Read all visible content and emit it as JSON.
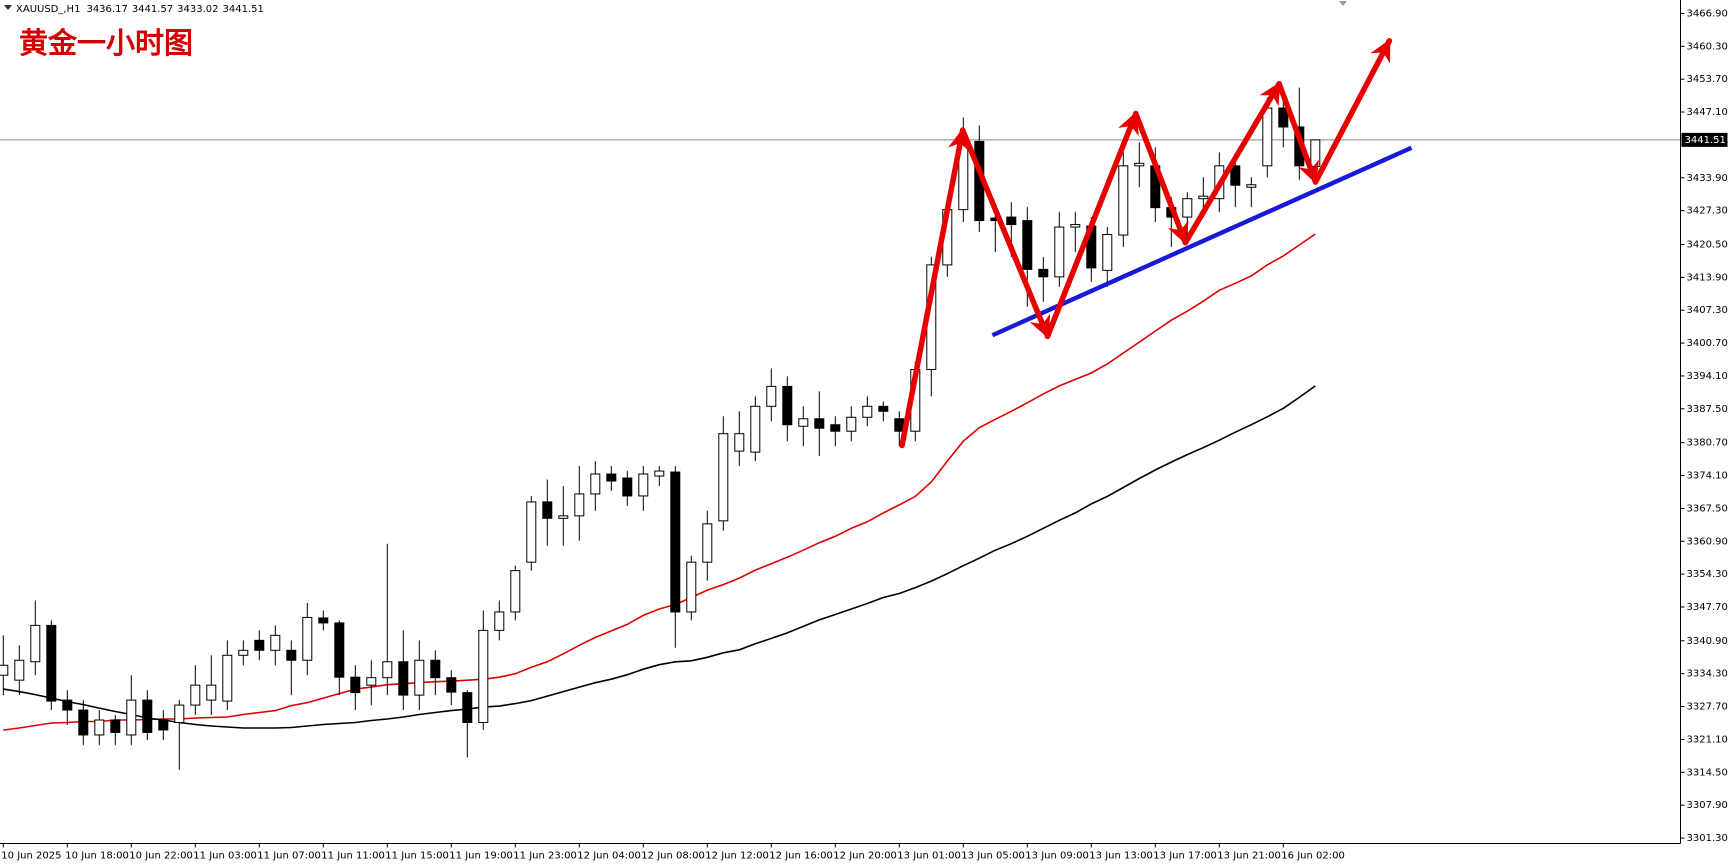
{
  "chart_data": {
    "type": "candlestick",
    "symbol": "XAUUSD_,H1",
    "title": "黄金一小时图",
    "categories": [
      "10 Jun 2025",
      null,
      null,
      null,
      "10 Jun 18:00",
      null,
      null,
      null,
      "10 Jun 22:00",
      null,
      null,
      null,
      "11 Jun 03:00",
      null,
      null,
      null,
      "11 Jun 07:00",
      null,
      null,
      null,
      "11 Jun 11:00",
      null,
      null,
      null,
      "11 Jun 15:00",
      null,
      null,
      null,
      "11 Jun 19:00",
      null,
      null,
      null,
      "11 Jun 23:00",
      null,
      null,
      null,
      "12 Jun 04:00",
      null,
      null,
      null,
      "12 Jun 08:00",
      null,
      null,
      null,
      "12 Jun 12:00",
      null,
      null,
      null,
      "12 Jun 16:00",
      null,
      null,
      null,
      "12 Jun 20:00",
      null,
      null,
      null,
      "13 Jun 01:00",
      null,
      null,
      null,
      "13 Jun 05:00",
      null,
      null,
      null,
      "13 Jun 09:00",
      null,
      null,
      null,
      "13 Jun 13:00",
      null,
      null,
      null,
      "13 Jun 17:00",
      null,
      null,
      null,
      "13 Jun 21:00",
      null,
      null,
      null,
      "16 Jun 02:00",
      null,
      null
    ],
    "open": [
      3334,
      3333,
      3336.7,
      3344,
      3329,
      3327,
      3322,
      3325,
      3322,
      3329,
      3325,
      3324.5,
      3328,
      3329,
      3328.8,
      3338,
      3341,
      3339,
      3339,
      3337,
      3345.5,
      3344.5,
      3333.6,
      3332,
      3333.5,
      3336.7,
      3330,
      3337,
      3333.5,
      3330.5,
      3324.5,
      3343,
      3346.7,
      3356.7,
      3368.8,
      3365.5,
      3366,
      3370.4,
      3374.4,
      3373.6,
      3370,
      3374,
      3374.8,
      3346.7,
      3356.7,
      3365,
      3379,
      3378.8,
      3388,
      3392,
      3384,
      3385.5,
      3384.3,
      3383,
      3385.8,
      3388,
      3385.5,
      3383,
      3395.4,
      3416.4,
      3427.5,
      3441.2,
      3425.8,
      3426,
      3425.3,
      3415.5,
      3414,
      3424,
      3424.2,
      3415.3,
      3422.4,
      3436.3,
      3436.3,
      3427.9,
      3426,
      3429.7,
      3429.7,
      3436.3,
      3432,
      3436.3,
      3447.9,
      3444.1,
      3436.17
    ],
    "high": [
      3342,
      3340,
      3349,
      3345,
      3331,
      3329,
      3327,
      3326,
      3334,
      3331,
      3327,
      3329,
      3336,
      3338,
      3341,
      3341,
      3343,
      3344,
      3341,
      3348.5,
      3347,
      3345,
      3336,
      3337,
      3360.4,
      3343,
      3341,
      3339,
      3335,
      3331,
      3347,
      3349,
      3356,
      3370,
      3373.3,
      3372,
      3376,
      3377,
      3376,
      3375,
      3376,
      3376,
      3376,
      3358,
      3367,
      3386,
      3387,
      3390,
      3395.6,
      3394,
      3388,
      3391,
      3386,
      3388,
      3390,
      3389,
      3387,
      3397,
      3418,
      3430,
      3446,
      3444.4,
      3428,
      3429,
      3428,
      3418,
      3427,
      3427,
      3426,
      3424,
      3441,
      3441,
      3440,
      3430,
      3431,
      3434,
      3439,
      3437,
      3434,
      3450,
      3449.5,
      3452,
      3441.57
    ],
    "low": [
      3330,
      3330,
      3334,
      3327,
      3324,
      3320,
      3320,
      3320,
      3320,
      3321,
      3321,
      3315,
      3326,
      3326,
      3327,
      3336,
      3337,
      3336,
      3330,
      3334,
      3343,
      3330,
      3327,
      3328,
      3330,
      3327,
      3327,
      3330,
      3328,
      3317.5,
      3323,
      3341,
      3345,
      3355,
      3360,
      3360,
      3361,
      3367,
      3371,
      3368,
      3367,
      3372,
      3339.5,
      3345,
      3353,
      3363,
      3376,
      3377,
      3385,
      3381,
      3380,
      3378,
      3380,
      3381,
      3384,
      3385,
      3380,
      3381,
      3390,
      3414,
      3425,
      3423,
      3419,
      3418,
      3408,
      3409,
      3412,
      3419,
      3413,
      3412,
      3420,
      3432,
      3425,
      3420,
      3422,
      3426,
      3427,
      3428,
      3428,
      3434,
      3440,
      3433.5,
      3433.02
    ],
    "close": [
      3336,
      3337,
      3344,
      3328.8,
      3327,
      3322,
      3325,
      3322.5,
      3329,
      3322.5,
      3323,
      3328,
      3332,
      3332,
      3338,
      3339,
      3339,
      3342,
      3337,
      3345.6,
      3344.5,
      3333.6,
      3330.5,
      3333.5,
      3336.7,
      3330,
      3337,
      3333.5,
      3330.6,
      3324.5,
      3343,
      3346.7,
      3355,
      3368.8,
      3365.5,
      3366,
      3370.4,
      3374.4,
      3373,
      3370,
      3374.4,
      3375,
      3346.7,
      3356.7,
      3364.4,
      3382.5,
      3382.5,
      3388,
      3392,
      3384.3,
      3385.5,
      3383.6,
      3383,
      3385.8,
      3388,
      3387,
      3383,
      3395.4,
      3416.4,
      3427.5,
      3440.8,
      3425.3,
      3425.3,
      3424.5,
      3415.5,
      3414,
      3424,
      3424.5,
      3415.8,
      3422.5,
      3436.3,
      3436.8,
      3427.9,
      3426,
      3429.7,
      3430.2,
      3436.3,
      3432.4,
      3432.5,
      3447.9,
      3444.1,
      3436.3,
      3441.51
    ],
    "bull_color": "#ffffff",
    "bear_color": "#000000",
    "overlays": [
      {
        "color": "#e00000",
        "values": [
          3323.0,
          3323.4,
          3323.9,
          3324.4,
          3324.5,
          3324.7,
          3324.7,
          3325.0,
          3325.0,
          3325.1,
          3325.2,
          3325.2,
          3325.4,
          3325.5,
          3325.6,
          3326.1,
          3326.5,
          3326.9,
          3327.9,
          3328.5,
          3329.4,
          3330.3,
          3331.2,
          3331.6,
          3332.1,
          3332.3,
          3332.5,
          3332.7,
          3332.8,
          3333.0,
          3333.2,
          3333.6,
          3334.3,
          3335.6,
          3336.7,
          3338.3,
          3340.0,
          3341.6,
          3342.9,
          3344.2,
          3346.0,
          3347.3,
          3348.2,
          3349.6,
          3351.1,
          3352.2,
          3353.5,
          3355.1,
          3356.4,
          3357.7,
          3359.1,
          3360.6,
          3361.9,
          3363.5,
          3364.8,
          3366.6,
          3368.2,
          3369.9,
          3372.8,
          3377.0,
          3381.0,
          3383.7,
          3385.4,
          3387.0,
          3388.7,
          3390.5,
          3392.1,
          3393.4,
          3394.7,
          3396.5,
          3398.7,
          3400.9,
          3403.1,
          3405.3,
          3407.1,
          3409.1,
          3411.3,
          3412.7,
          3414.2,
          3416.4,
          3418.2,
          3420.4,
          3422.6
        ]
      },
      {
        "color": "#000000",
        "values": [
          3331.2,
          3330.7,
          3330.1,
          3329.4,
          3328.7,
          3328.1,
          3327.4,
          3326.7,
          3326.1,
          3325.4,
          3325.0,
          3324.5,
          3324.1,
          3323.8,
          3323.6,
          3323.4,
          3323.4,
          3323.4,
          3323.5,
          3323.8,
          3324.1,
          3324.3,
          3324.5,
          3324.9,
          3325.2,
          3325.6,
          3326.1,
          3326.5,
          3326.9,
          3327.2,
          3327.6,
          3327.8,
          3328.3,
          3328.9,
          3329.8,
          3330.7,
          3331.6,
          3332.5,
          3333.2,
          3334.1,
          3335.2,
          3336.1,
          3336.7,
          3336.9,
          3337.6,
          3338.5,
          3339.1,
          3340.3,
          3341.4,
          3342.5,
          3343.8,
          3345.1,
          3346.2,
          3347.3,
          3348.4,
          3349.6,
          3350.4,
          3351.6,
          3352.9,
          3354.4,
          3356.0,
          3357.5,
          3359.1,
          3360.4,
          3361.9,
          3363.5,
          3365.1,
          3366.6,
          3368.4,
          3369.9,
          3371.7,
          3373.5,
          3375.2,
          3376.8,
          3378.3,
          3379.7,
          3381.2,
          3382.8,
          3384.3,
          3385.9,
          3387.6,
          3389.8,
          3392.1
        ]
      }
    ],
    "ylim": [
      3300.2,
      3469.6
    ],
    "yticks": [
      {
        "value": 3466.9,
        "label": "3466.90"
      },
      {
        "value": 3460.3,
        "label": "3460.30"
      },
      {
        "value": 3453.7,
        "label": "3453.70"
      },
      {
        "value": 3447.1,
        "label": "3447.10"
      },
      {
        "value": 3433.9,
        "label": "3433.90"
      },
      {
        "value": 3427.3,
        "label": "3427.30"
      },
      {
        "value": 3420.5,
        "label": "3420.50"
      },
      {
        "value": 3413.9,
        "label": "3413.90"
      },
      {
        "value": 3407.3,
        "label": "3407.30"
      },
      {
        "value": 3400.7,
        "label": "3400.70"
      },
      {
        "value": 3394.1,
        "label": "3394.10"
      },
      {
        "value": 3387.5,
        "label": "3387.50"
      },
      {
        "value": 3380.7,
        "label": "3380.70"
      },
      {
        "value": 3374.1,
        "label": "3374.10"
      },
      {
        "value": 3367.5,
        "label": "3367.50"
      },
      {
        "value": 3360.9,
        "label": "3360.90"
      },
      {
        "value": 3354.3,
        "label": "3354.30"
      },
      {
        "value": 3347.7,
        "label": "3347.70"
      },
      {
        "value": 3340.9,
        "label": "3340.90"
      },
      {
        "value": 3334.3,
        "label": "3334.30"
      },
      {
        "value": 3327.7,
        "label": "3327.70"
      },
      {
        "value": 3321.1,
        "label": "3321.10"
      },
      {
        "value": 3314.5,
        "label": "3314.50"
      },
      {
        "value": 3307.9,
        "label": "3307.90"
      },
      {
        "value": 3301.3,
        "label": "3301.30"
      }
    ],
    "grid": false
  }
}
